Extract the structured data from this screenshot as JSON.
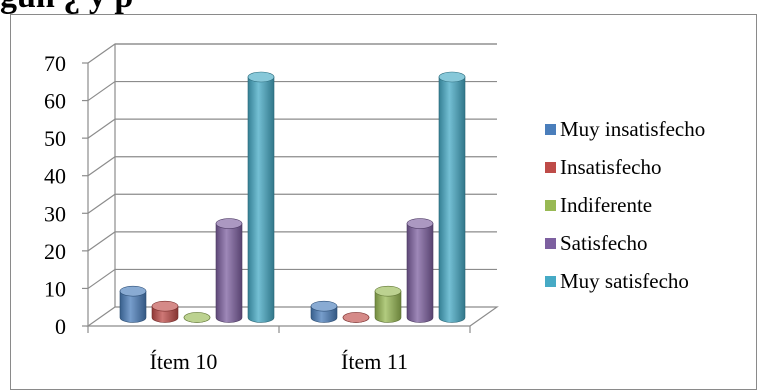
{
  "header": {
    "title": "gún ¿ y p"
  },
  "chart_data": {
    "type": "bar",
    "categories": [
      "Ítem 10",
      "Ítem 11"
    ],
    "series": [
      {
        "name": "Muy insatisfecho",
        "values": [
          7,
          3
        ],
        "color": "#4a7ebb"
      },
      {
        "name": "Insatisfecho",
        "values": [
          3,
          0
        ],
        "color": "#be4b48"
      },
      {
        "name": "Indiferente",
        "values": [
          0,
          7
        ],
        "color": "#98b954"
      },
      {
        "name": "Satisfecho",
        "values": [
          25,
          25
        ],
        "color": "#7d60a0"
      },
      {
        "name": "Muy satisfecho",
        "values": [
          64,
          64
        ],
        "color": "#46aac5"
      }
    ],
    "ylim": [
      0,
      70
    ],
    "yticks": [
      "0",
      "10",
      "20",
      "30",
      "40",
      "50",
      "60",
      "70"
    ],
    "grid": true,
    "legend": "right",
    "style": "3d-cylinder"
  }
}
